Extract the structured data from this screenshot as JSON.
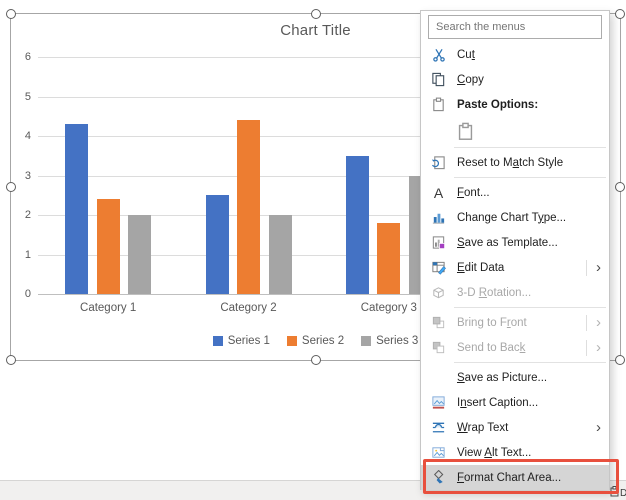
{
  "chart_data": {
    "type": "bar",
    "title": "Chart Title",
    "categories": [
      "Category 1",
      "Category 2",
      "Category 3"
    ],
    "series": [
      {
        "name": "Series 1",
        "color": "#4472C4",
        "values": [
          4.3,
          2.5,
          3.5
        ]
      },
      {
        "name": "Series 2",
        "color": "#ED7D31",
        "values": [
          2.4,
          4.4,
          1.8
        ]
      },
      {
        "name": "Series 3",
        "color": "#A5A5A5",
        "values": [
          2.0,
          2.0,
          3.0
        ]
      }
    ],
    "xlabel": "",
    "ylabel": "",
    "ylim": [
      0,
      6
    ],
    "yticks": [
      0,
      1,
      2,
      3,
      4,
      5,
      6
    ],
    "grid": true,
    "legend_position": "bottom"
  },
  "menu": {
    "search_placeholder": "Search the menus",
    "items": [
      {
        "icon": "scissors-icon",
        "pre": "Cu",
        "key": "t",
        "post": ""
      },
      {
        "icon": "copy-icon",
        "pre": "",
        "key": "C",
        "post": "opy"
      },
      {
        "icon": "clipboard-icon",
        "pre": "Paste Options:",
        "key": "",
        "post": "",
        "bold": true
      },
      {
        "icon": "paste-option-clipboard-icon",
        "pre": "",
        "key": "",
        "post": ""
      },
      {
        "icon": "reset-style-icon",
        "pre": "Reset to M",
        "key": "a",
        "post": "tch Style"
      },
      {
        "icon": "font-a-icon",
        "pre": "",
        "key": "F",
        "post": "ont..."
      },
      {
        "icon": "bar-chart-icon",
        "pre": "Change Chart T",
        "key": "y",
        "post": "pe..."
      },
      {
        "icon": "save-template-icon",
        "pre": "",
        "key": "S",
        "post": "ave as Template..."
      },
      {
        "icon": "edit-data-icon",
        "pre": "",
        "key": "E",
        "post": "dit Data",
        "arrow": true
      },
      {
        "icon": "cube-icon",
        "pre": "3-D ",
        "key": "R",
        "post": "otation...",
        "disabled": true
      },
      {
        "icon": "bring-front-icon",
        "pre": "Bring to F",
        "key": "r",
        "post": "ont",
        "disabled": true,
        "arrow": true
      },
      {
        "icon": "send-back-icon",
        "pre": "Send to Bac",
        "key": "k",
        "post": "",
        "disabled": true,
        "arrow": true
      },
      {
        "icon": "",
        "pre": "",
        "key": "S",
        "post": "ave as Picture..."
      },
      {
        "icon": "insert-caption-icon",
        "pre": "I",
        "key": "n",
        "post": "sert Caption..."
      },
      {
        "icon": "wrap-text-icon",
        "pre": "",
        "key": "W",
        "post": "rap Text",
        "arrow": true
      },
      {
        "icon": "view-alt-text-icon",
        "pre": "View ",
        "key": "A",
        "post": "lt Text..."
      },
      {
        "icon": "format-paint-icon",
        "pre": "",
        "key": "F",
        "post": "ormat Chart Area...",
        "highlighted": true
      }
    ]
  },
  "annotation": {
    "highlight_color": "#E8503E",
    "highlighted_item": "Format Chart Area..."
  },
  "fragment": {
    "label": "D"
  },
  "colors": {
    "bar_blue": "#4472C4",
    "bar_orange": "#ED7D31",
    "bar_gray": "#A5A5A5",
    "gridline": "#DCDCDC",
    "axis_text": "#595959",
    "menu_hover_bg": "#D5D5D5"
  }
}
